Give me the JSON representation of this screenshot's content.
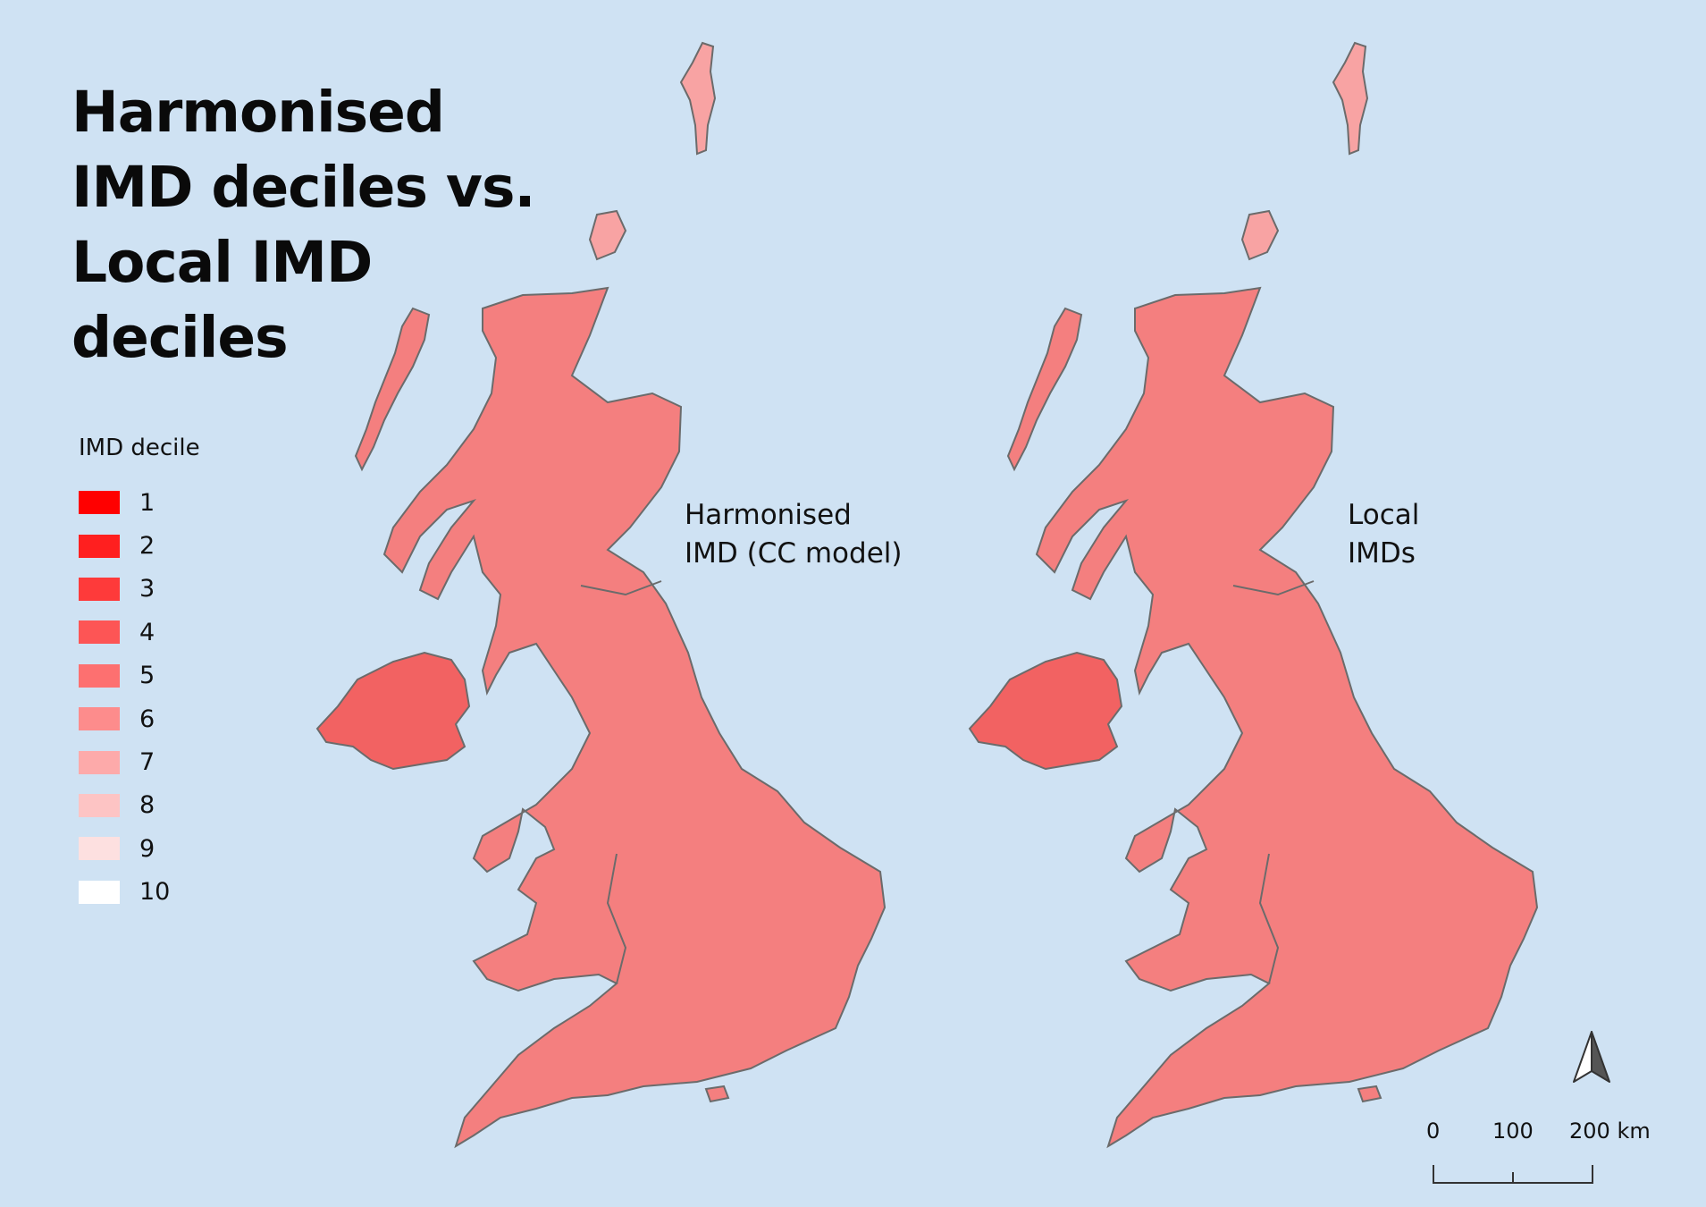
{
  "title": {
    "lines": [
      "Harmonised",
      "IMD deciles vs.",
      "Local IMD",
      "deciles"
    ]
  },
  "legend": {
    "title": "IMD decile",
    "items": [
      {
        "label": "1",
        "color": "#ff0000"
      },
      {
        "label": "2",
        "color": "#ff1f1f"
      },
      {
        "label": "3",
        "color": "#fe3a3a"
      },
      {
        "label": "4",
        "color": "#fd5555"
      },
      {
        "label": "5",
        "color": "#fd7070"
      },
      {
        "label": "6",
        "color": "#fd8c8c"
      },
      {
        "label": "7",
        "color": "#fdaaaa"
      },
      {
        "label": "8",
        "color": "#fdc4c4"
      },
      {
        "label": "9",
        "color": "#fde0e0"
      },
      {
        "label": "10",
        "color": "#ffffff"
      }
    ]
  },
  "maps": {
    "left": {
      "label_lines": [
        "Harmonised",
        "IMD (CC model)"
      ]
    },
    "right": {
      "label_lines": [
        "Local",
        "IMDs"
      ]
    }
  },
  "north_arrow": {
    "icon": "north-arrow-icon"
  },
  "scale_bar": {
    "labels": [
      "0",
      "100",
      "200 km"
    ]
  },
  "colors": {
    "background": "#cfe2f3",
    "land_base": "#f47f7f",
    "border": "#6b6b6b"
  }
}
